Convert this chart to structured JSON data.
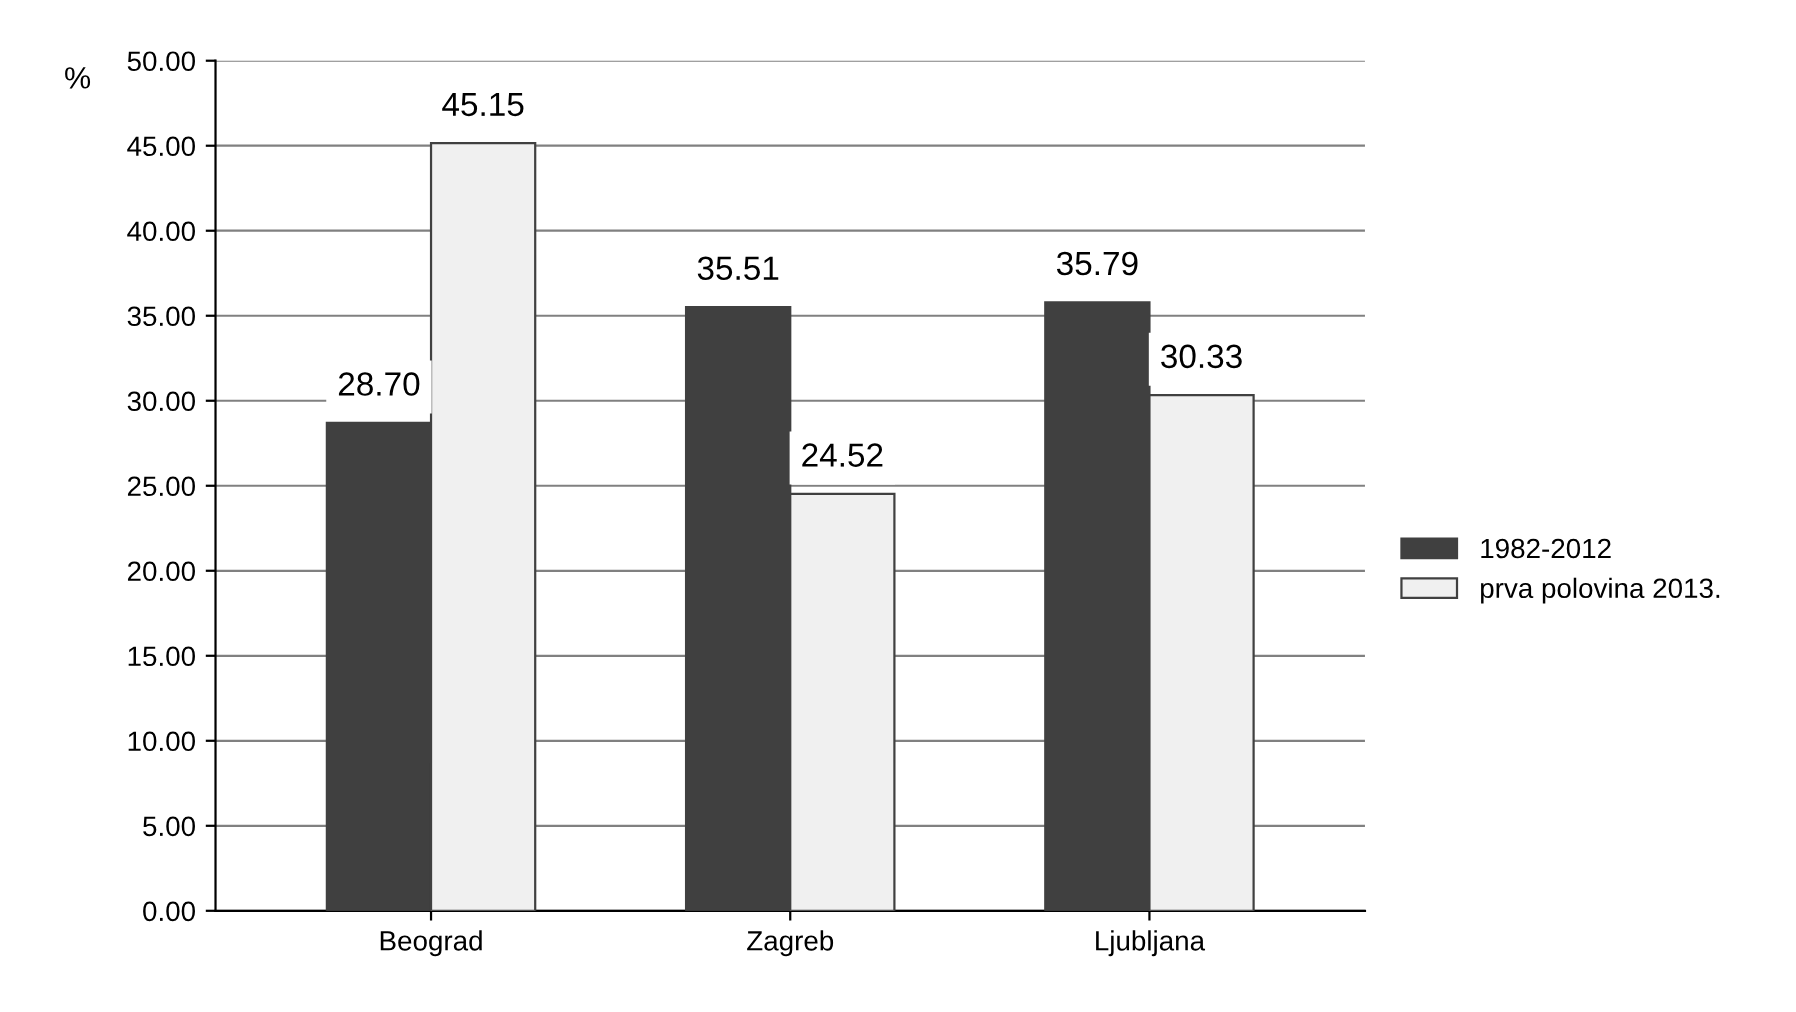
{
  "chart_data": {
    "type": "bar",
    "ylabel": "%",
    "categories": [
      "Beograd",
      "Zagreb",
      "Ljubljana"
    ],
    "series": [
      {
        "name": "1982-2012",
        "color": "#404040",
        "values": [
          28.7,
          35.51,
          35.79
        ],
        "value_labels": [
          "28.70",
          "35.51",
          "35.79"
        ]
      },
      {
        "name": "prva polovina 2013.",
        "color": "#f0f0f0",
        "values": [
          45.15,
          24.52,
          30.33
        ],
        "value_labels": [
          "45.15",
          "24.52",
          "30.33"
        ]
      }
    ],
    "ylim": [
      0,
      50
    ],
    "yticks": [
      {
        "value": 0,
        "label": "0.00"
      },
      {
        "value": 5,
        "label": "5.00"
      },
      {
        "value": 10,
        "label": "10.00"
      },
      {
        "value": 15,
        "label": "15.00"
      },
      {
        "value": 20,
        "label": "20.00"
      },
      {
        "value": 25,
        "label": "25.00"
      },
      {
        "value": 30,
        "label": "30.00"
      },
      {
        "value": 35,
        "label": "35.00"
      },
      {
        "value": 40,
        "label": "40.00"
      },
      {
        "value": 45,
        "label": "45.00"
      },
      {
        "value": 50,
        "label": "50.00"
      }
    ],
    "grid": "y",
    "legend": "right"
  }
}
